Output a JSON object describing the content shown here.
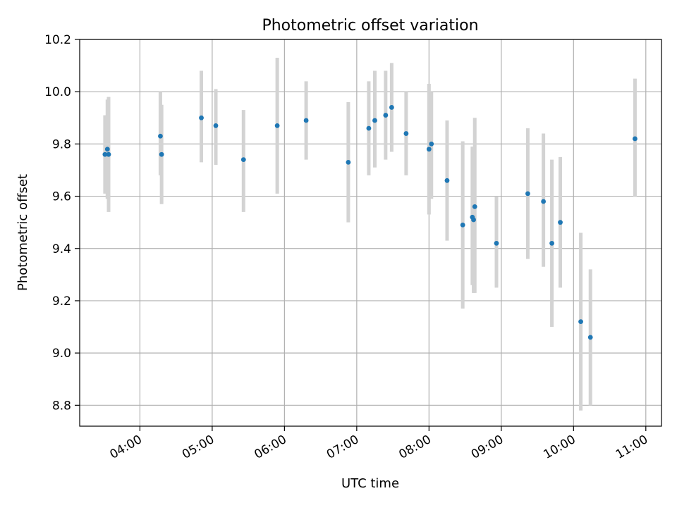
{
  "chart_data": {
    "type": "scatter",
    "title": "Photometric offset variation",
    "xlabel": "UTC time",
    "ylabel": "Photometric offset",
    "xlim": [
      "03:10",
      "11:13"
    ],
    "ylim": [
      8.72,
      10.2
    ],
    "x_ticks": [
      "04:00",
      "05:00",
      "06:00",
      "07:00",
      "08:00",
      "09:00",
      "10:00",
      "11:00"
    ],
    "y_ticks": [
      "8.8",
      "9.0",
      "9.2",
      "9.4",
      "9.6",
      "9.8",
      "10.0",
      "10.2"
    ],
    "grid": true,
    "colors": {
      "point": "#1f77b4",
      "errorbar": "#d3d3d3",
      "grid": "#b0b0b0"
    },
    "points": [
      {
        "x": "03:31",
        "y": 9.76,
        "ylow": 9.61,
        "yhigh": 9.91
      },
      {
        "x": "03:33",
        "y": 9.78,
        "ylow": 9.59,
        "yhigh": 9.97
      },
      {
        "x": "03:34",
        "y": 9.76,
        "ylow": 9.54,
        "yhigh": 9.98
      },
      {
        "x": "04:17",
        "y": 9.83,
        "ylow": 9.68,
        "yhigh": 10.0
      },
      {
        "x": "04:18",
        "y": 9.76,
        "ylow": 9.57,
        "yhigh": 9.95
      },
      {
        "x": "04:51",
        "y": 9.9,
        "ylow": 9.73,
        "yhigh": 10.08
      },
      {
        "x": "05:03",
        "y": 9.87,
        "ylow": 9.72,
        "yhigh": 10.01
      },
      {
        "x": "05:26",
        "y": 9.74,
        "ylow": 9.54,
        "yhigh": 9.93
      },
      {
        "x": "05:54",
        "y": 9.87,
        "ylow": 9.61,
        "yhigh": 10.13
      },
      {
        "x": "06:18",
        "y": 9.89,
        "ylow": 9.74,
        "yhigh": 10.04
      },
      {
        "x": "06:53",
        "y": 9.73,
        "ylow": 9.5,
        "yhigh": 9.96
      },
      {
        "x": "07:10",
        "y": 9.86,
        "ylow": 9.68,
        "yhigh": 10.04
      },
      {
        "x": "07:15",
        "y": 9.89,
        "ylow": 9.71,
        "yhigh": 10.08
      },
      {
        "x": "07:24",
        "y": 9.91,
        "ylow": 9.74,
        "yhigh": 10.08
      },
      {
        "x": "07:29",
        "y": 9.94,
        "ylow": 9.77,
        "yhigh": 10.11
      },
      {
        "x": "07:41",
        "y": 9.84,
        "ylow": 9.68,
        "yhigh": 10.0
      },
      {
        "x": "08:00",
        "y": 9.78,
        "ylow": 9.53,
        "yhigh": 10.03
      },
      {
        "x": "08:02",
        "y": 9.8,
        "ylow": 9.59,
        "yhigh": 10.0
      },
      {
        "x": "08:15",
        "y": 9.66,
        "ylow": 9.43,
        "yhigh": 9.89
      },
      {
        "x": "08:28",
        "y": 9.49,
        "ylow": 9.17,
        "yhigh": 9.81
      },
      {
        "x": "08:36",
        "y": 9.52,
        "ylow": 9.26,
        "yhigh": 9.79
      },
      {
        "x": "08:37",
        "y": 9.51,
        "ylow": 9.23,
        "yhigh": 9.78
      },
      {
        "x": "08:38",
        "y": 9.56,
        "ylow": 9.23,
        "yhigh": 9.9
      },
      {
        "x": "08:56",
        "y": 9.42,
        "ylow": 9.25,
        "yhigh": 9.6
      },
      {
        "x": "09:22",
        "y": 9.61,
        "ylow": 9.36,
        "yhigh": 9.86
      },
      {
        "x": "09:35",
        "y": 9.58,
        "ylow": 9.33,
        "yhigh": 9.84
      },
      {
        "x": "09:42",
        "y": 9.42,
        "ylow": 9.1,
        "yhigh": 9.74
      },
      {
        "x": "09:49",
        "y": 9.5,
        "ylow": 9.25,
        "yhigh": 9.75
      },
      {
        "x": "10:06",
        "y": 9.12,
        "ylow": 8.78,
        "yhigh": 9.46
      },
      {
        "x": "10:14",
        "y": 9.06,
        "ylow": 8.8,
        "yhigh": 9.32
      },
      {
        "x": "10:51",
        "y": 9.82,
        "ylow": 9.6,
        "yhigh": 10.05
      }
    ]
  }
}
